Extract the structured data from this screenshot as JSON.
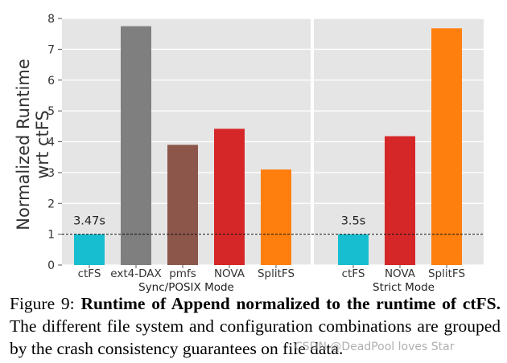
{
  "chart_data": {
    "type": "bar",
    "ylabel_lines": [
      "Normalized Runtime",
      "wrt ctFS"
    ],
    "ylim": [
      0,
      8
    ],
    "yticks": [
      0,
      1,
      2,
      3,
      4,
      5,
      6,
      7,
      8
    ],
    "grid": true,
    "reference_line": 1,
    "groups": [
      {
        "name": "Sync/POSIX Mode",
        "bars": [
          {
            "category": "ctFS",
            "value": 1.0,
            "color": "#17becf",
            "label": "3.47s"
          },
          {
            "category": "ext4-DAX",
            "value": 7.75,
            "color": "#7f7f7f"
          },
          {
            "category": "pmfs",
            "value": 3.9,
            "color": "#8c564b"
          },
          {
            "category": "NOVA",
            "value": 4.42,
            "color": "#d62728"
          },
          {
            "category": "SplitFS",
            "value": 3.1,
            "color": "#ff7f0e"
          }
        ]
      },
      {
        "name": "Strict Mode",
        "bars": [
          {
            "category": "ctFS",
            "value": 1.0,
            "color": "#17becf",
            "label": "3.5s"
          },
          {
            "category": "NOVA",
            "value": 4.18,
            "color": "#d62728"
          },
          {
            "category": "SplitFS",
            "value": 7.68,
            "color": "#ff7f0e"
          }
        ]
      }
    ]
  },
  "caption": {
    "prefix": "Figure 9: ",
    "bold": "Runtime of Append normalized to the runtime of ctFS.",
    "rest": " The different file system and configuration combinations are grouped by the crash consistency guarantees on file data."
  },
  "watermark": "CSDN @DeadPool loves Star"
}
